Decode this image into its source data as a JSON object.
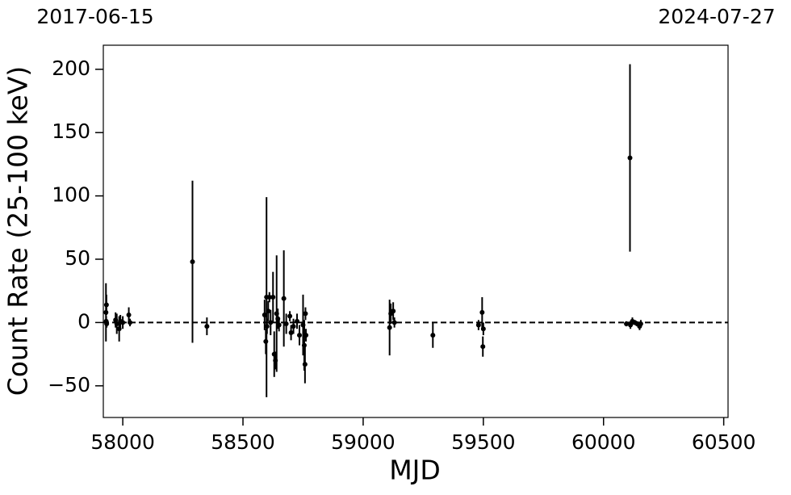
{
  "chart_data": {
    "type": "errorbar-scatter",
    "xlabel": "MJD",
    "ylabel": "Count Rate (25-100 keV)",
    "top_left_label": "2017-06-15",
    "top_right_label": "2024-07-27",
    "xlim": [
      57919,
      60518
    ],
    "ylim": [
      -75,
      219
    ],
    "xticks": [
      58000,
      58500,
      59000,
      59500,
      60000,
      60500
    ],
    "yticks": [
      {
        "value": -50,
        "label": "−50"
      },
      0,
      50,
      100,
      150,
      200
    ],
    "reference_line": 0,
    "color": "#000000",
    "x": [
      57930,
      57932,
      57931,
      57933,
      57970,
      57975,
      57985,
      57990,
      58000,
      58025,
      58030,
      58290,
      58350,
      58590,
      58595,
      58598,
      58600,
      58605,
      58610,
      58615,
      58625,
      58630,
      58635,
      58640,
      58645,
      58650,
      58670,
      58680,
      58695,
      58700,
      58710,
      58725,
      58735,
      58750,
      58755,
      58758,
      58760,
      58762,
      59110,
      59115,
      59125,
      59130,
      59290,
      59480,
      59495,
      59498,
      59500,
      60095,
      60110,
      60112,
      60120,
      60130,
      60140,
      60150,
      60155
    ],
    "values": [
      8,
      14,
      1,
      -1,
      2,
      -1,
      -5,
      1,
      0,
      6,
      0,
      48,
      -3,
      6,
      -15,
      20,
      -3,
      9,
      20,
      0,
      20,
      -25,
      -30,
      7,
      3,
      -2,
      19,
      -1,
      5,
      -8,
      -3,
      1,
      -10,
      -2,
      -18,
      -33,
      7,
      -10,
      -4,
      7,
      9,
      0,
      -10,
      -2,
      8,
      -19,
      -5,
      -1,
      130,
      -2,
      1,
      0,
      -1,
      -3,
      -1
    ],
    "errors": [
      23,
      8,
      4,
      3,
      6,
      8,
      10,
      5,
      5,
      6,
      3,
      64,
      7,
      12,
      10,
      79,
      6,
      8,
      4,
      10,
      20,
      18,
      7,
      46,
      8,
      5,
      38,
      8,
      4,
      6,
      6,
      6,
      8,
      24,
      20,
      15,
      5,
      5,
      22,
      8,
      7,
      4,
      10,
      4,
      12,
      8,
      5,
      2,
      74,
      3,
      3,
      2,
      2,
      3,
      3
    ]
  }
}
